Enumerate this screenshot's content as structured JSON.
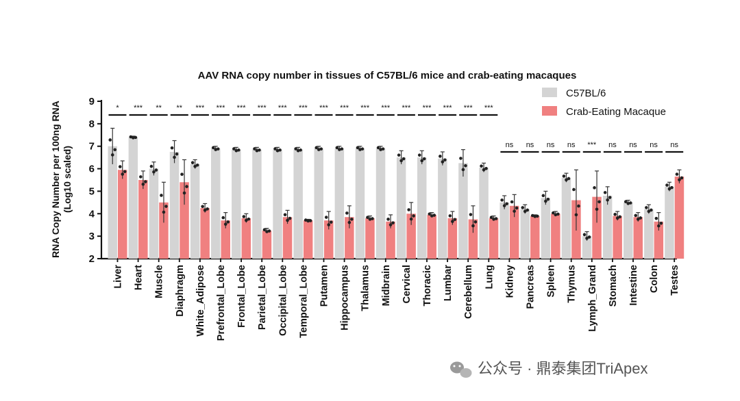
{
  "chart_data": {
    "type": "bar",
    "title": "AAV RNA copy number in tissues of C57BL/6 mice and crab-eating macaques",
    "ylabel": "RNA Copy Number per 100ng RNA\n(Log10 scaled)",
    "xlabel": "",
    "ylim": [
      2,
      9
    ],
    "yticks": [
      "2",
      "3",
      "4",
      "5",
      "6",
      "7",
      "8",
      "9"
    ],
    "grid": false,
    "legend_position": "top-right",
    "categories": [
      "Liver",
      "Heart",
      "Muscle",
      "Diaphragm",
      "White_Adipose",
      "Prefrontal_Lobe",
      "Frontal_Lobe",
      "Parietal_Lobe",
      "Occipital_Lobe",
      "Temporal_Lobe",
      "Putamen",
      "Hippocampus",
      "Thalamus",
      "Midbrain",
      "Cervical",
      "Thoracic",
      "Lumbar",
      "Cerebellum",
      "Lung",
      "Kidney",
      "Pancreas",
      "Spleen",
      "Thymus",
      "Lymph_Grand",
      "Stomach",
      "Intestine",
      "Colon",
      "Testes"
    ],
    "series": [
      {
        "name": "C57BL/6",
        "color": "#d4d4d4",
        "values": [
          7.0,
          7.4,
          6.0,
          6.75,
          6.2,
          6.9,
          6.85,
          6.85,
          6.85,
          6.85,
          6.9,
          6.9,
          6.9,
          6.9,
          6.5,
          6.5,
          6.45,
          6.25,
          6.05,
          4.5,
          4.2,
          4.7,
          5.6,
          3.0,
          4.8,
          4.5,
          4.2,
          5.2
        ],
        "errors": [
          0.8,
          0.05,
          0.3,
          0.5,
          0.2,
          0.1,
          0.1,
          0.1,
          0.1,
          0.1,
          0.1,
          0.1,
          0.1,
          0.1,
          0.3,
          0.3,
          0.3,
          0.6,
          0.2,
          0.3,
          0.2,
          0.3,
          0.2,
          0.2,
          0.4,
          0.1,
          0.2,
          0.2
        ]
      },
      {
        "name": "Crab-Eating Macaque",
        "color": "#f08080",
        "values": [
          5.95,
          5.5,
          4.5,
          5.4,
          4.25,
          3.7,
          3.8,
          3.25,
          3.85,
          3.7,
          3.7,
          3.85,
          3.8,
          3.65,
          4.0,
          3.95,
          3.8,
          3.75,
          3.8,
          4.35,
          3.9,
          4.0,
          4.6,
          4.75,
          3.9,
          3.85,
          3.65,
          5.65
        ]
      }
    ],
    "macaque_errors": [
      0.4,
      0.4,
      0.9,
      1.0,
      0.2,
      0.35,
      0.2,
      0.1,
      0.3,
      0.05,
      0.4,
      0.5,
      0.1,
      0.3,
      0.5,
      0.1,
      0.3,
      0.6,
      0.1,
      0.5,
      0.05,
      0.1,
      1.35,
      1.15,
      0.2,
      0.2,
      0.4,
      0.3
    ],
    "significance": [
      "*",
      "***",
      "**",
      "**",
      "***",
      "***",
      "***",
      "***",
      "***",
      "***",
      "***",
      "***",
      "***",
      "***",
      "***",
      "***",
      "***",
      "***",
      "***",
      "ns",
      "ns",
      "ns",
      "ns",
      "***",
      "ns",
      "ns",
      "ns",
      "ns"
    ]
  },
  "watermark": "公众号 · 鼎泰集团TriApex"
}
